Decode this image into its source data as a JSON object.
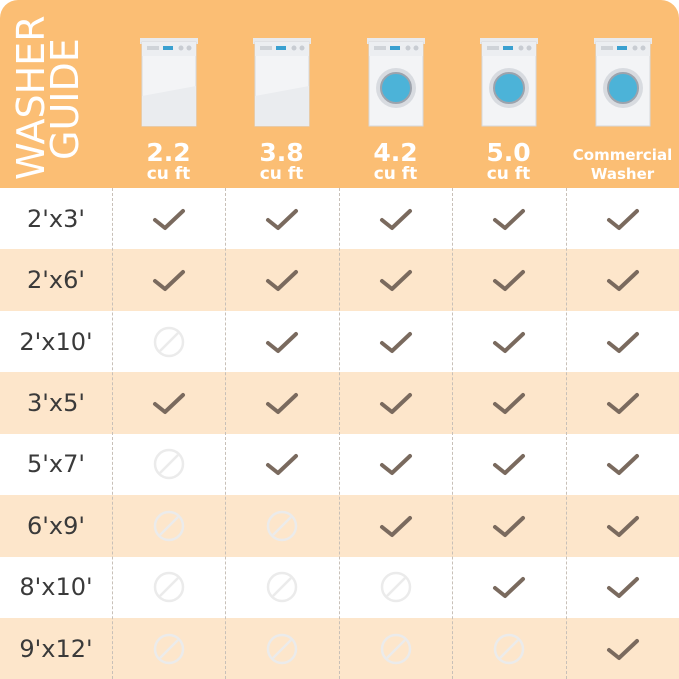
{
  "title": {
    "line1": "WASHER",
    "line2": "GUIDE"
  },
  "columns": [
    {
      "num": "2.2",
      "unit": "cu ft",
      "style": "panel"
    },
    {
      "num": "3.8",
      "unit": "cu ft",
      "style": "panel"
    },
    {
      "num": "4.2",
      "unit": "cu ft",
      "style": "drum"
    },
    {
      "num": "5.0",
      "unit": "cu ft",
      "style": "drum"
    },
    {
      "line1": "Commercial",
      "line2": "Washer",
      "style": "drum"
    }
  ],
  "rows": [
    {
      "size": "2'x3'",
      "fits": [
        true,
        true,
        true,
        true,
        true
      ]
    },
    {
      "size": "2'x6'",
      "fits": [
        true,
        true,
        true,
        true,
        true
      ]
    },
    {
      "size": "2'x10'",
      "fits": [
        false,
        true,
        true,
        true,
        true
      ]
    },
    {
      "size": "3'x5'",
      "fits": [
        true,
        true,
        true,
        true,
        true
      ]
    },
    {
      "size": "5'x7'",
      "fits": [
        false,
        true,
        true,
        true,
        true
      ]
    },
    {
      "size": "6'x9'",
      "fits": [
        false,
        false,
        true,
        true,
        true
      ]
    },
    {
      "size": "8'x10'",
      "fits": [
        false,
        false,
        false,
        true,
        true
      ]
    },
    {
      "size": "9'x12'",
      "fits": [
        false,
        false,
        false,
        false,
        true
      ]
    }
  ],
  "colors": {
    "header": "#FBBE74",
    "alt_row": "#FDE6CB",
    "check": "#7a6a5e",
    "no": "#ececec"
  }
}
